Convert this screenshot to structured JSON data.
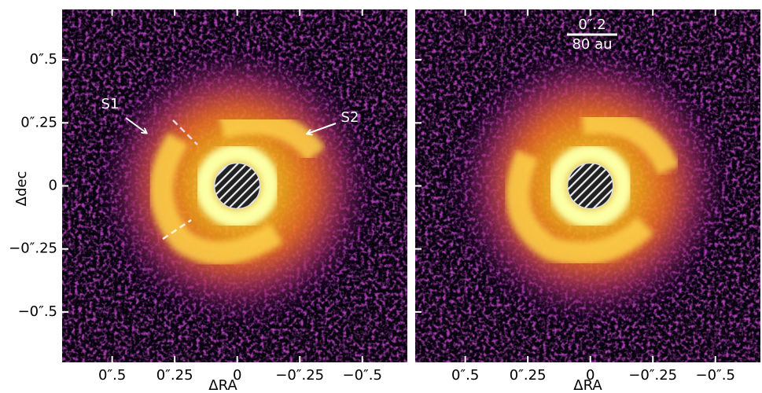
{
  "chart_data": [
    {
      "type": "image",
      "xlabel": "ΔRA",
      "ylabel": "Δdec",
      "xlim": [
        0.7,
        -0.68
      ],
      "ylim": [
        -0.7,
        0.7
      ],
      "xticks": [
        {
          "value": 0.5,
          "label": "0″.5"
        },
        {
          "value": 0.25,
          "label": "0″.25"
        },
        0,
        {
          "value": -0.25,
          "label": "−0″.25"
        },
        {
          "value": -0.5,
          "label": "−0″.5"
        }
      ],
      "yticks": [
        {
          "value": 0.5,
          "label": "0″.5"
        },
        {
          "value": 0.25,
          "label": "0″.25"
        },
        0,
        {
          "value": -0.25,
          "label": "−0″.25"
        },
        {
          "value": -0.5,
          "label": "−0″.5"
        }
      ],
      "annotations": [
        "S1",
        "S2"
      ]
    },
    {
      "type": "image",
      "xlabel": "ΔRA",
      "xlim": [
        0.7,
        -0.68
      ],
      "ylim": [
        -0.7,
        0.7
      ],
      "xticks": [
        {
          "value": 0.5,
          "label": "0″.5"
        },
        {
          "value": 0.25,
          "label": "0″.25"
        },
        0,
        {
          "value": -0.25,
          "label": "−0″.25"
        },
        {
          "value": -0.5,
          "label": "−0″.5"
        }
      ],
      "yticks": [
        0.5,
        0.25,
        0,
        -0.25,
        -0.5
      ],
      "scalebar": [
        "0″.2",
        "80 au"
      ]
    }
  ]
}
